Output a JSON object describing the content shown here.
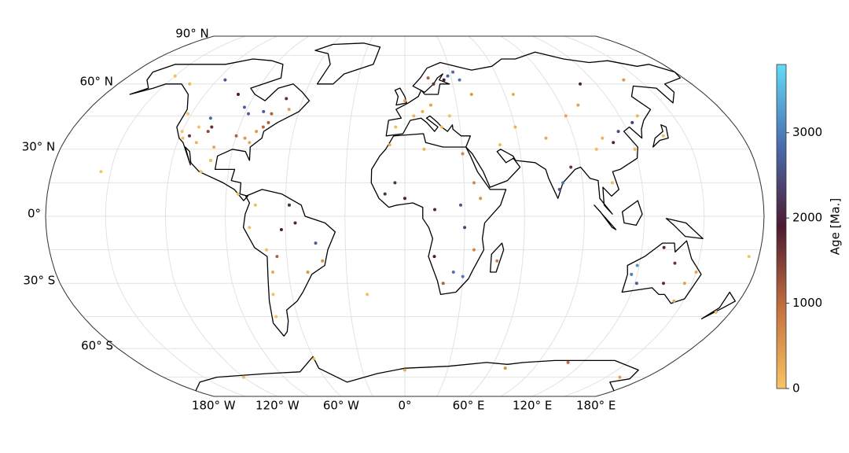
{
  "chart_data": {
    "type": "scatter",
    "colorbar_label": "Age [Ma.]",
    "clim": [
      0,
      3800
    ],
    "cticks": [
      0,
      1000,
      2000,
      3000
    ],
    "colormap": [
      "#f8c462",
      "#c4703e",
      "#4c1a30",
      "#4a6cae",
      "#62dcf8"
    ],
    "yticks": [
      {
        "value": 90,
        "label": "90° N"
      },
      {
        "value": 60,
        "label": "60° N"
      },
      {
        "value": 30,
        "label": "30° N"
      },
      {
        "value": 0,
        "label": "0°"
      },
      {
        "value": -30,
        "label": "30° S"
      },
      {
        "value": -60,
        "label": "60° S"
      }
    ],
    "xticks": [
      {
        "value": -180,
        "label": "180° W"
      },
      {
        "value": -120,
        "label": "120° W"
      },
      {
        "value": -60,
        "label": "60° W"
      },
      {
        "value": 0,
        "label": "0°"
      },
      {
        "value": 60,
        "label": "60° E"
      },
      {
        "value": 120,
        "label": "120° E"
      },
      {
        "value": 180,
        "label": "180° E"
      }
    ],
    "x": [
      -120,
      -118,
      -115,
      -112,
      -110,
      -106,
      -105,
      -108,
      -122,
      -100,
      -104,
      -100,
      -90,
      -85,
      -80,
      -77,
      -75,
      -82,
      -88,
      -80,
      -75,
      -92,
      -100,
      -115,
      -70,
      -66,
      -150,
      -135,
      -84,
      -75,
      -78,
      -70,
      -68,
      -70,
      -72,
      -62,
      -55,
      -45,
      -42,
      -50,
      -58,
      -65,
      -5,
      5,
      10,
      15,
      25,
      0,
      20,
      25,
      28,
      32,
      18,
      15,
      35,
      40,
      -8,
      10,
      30,
      35,
      38,
      30,
      25,
      30,
      20,
      15,
      -10,
      0,
      15,
      35,
      28,
      -5,
      47,
      50,
      60,
      75,
      78,
      80,
      85,
      100,
      105,
      110,
      115,
      120,
      125,
      90,
      100,
      130,
      138,
      110,
      140,
      65,
      105,
      117,
      119,
      121,
      135,
      138,
      146,
      150,
      145,
      131,
      172,
      -60,
      70,
      110,
      160,
      0,
      -120,
      -155,
      -20,
      175
    ],
    "y": [
      38,
      35,
      36,
      40,
      33,
      38,
      40,
      44,
      46,
      31,
      20,
      25,
      36,
      35,
      38,
      40,
      42,
      33,
      46,
      47,
      46,
      49,
      55,
      62,
      53,
      48,
      64,
      60,
      10,
      5,
      -5,
      -15,
      -25,
      -35,
      -45,
      -6,
      -3,
      -12,
      -20,
      -25,
      5,
      -18,
      40,
      45,
      47,
      50,
      45,
      52,
      40,
      62,
      64,
      66,
      60,
      63,
      62,
      55,
      32,
      30,
      28,
      15,
      8,
      -5,
      -25,
      -27,
      -30,
      -18,
      10,
      8,
      3,
      -15,
      5,
      15,
      -20,
      32,
      40,
      35,
      12,
      15,
      22,
      30,
      35,
      33,
      38,
      30,
      42,
      45,
      50,
      45,
      36,
      60,
      62,
      55,
      15,
      -26,
      -22,
      -30,
      -30,
      -21,
      -30,
      -25,
      -38,
      -14,
      -43,
      -65,
      -70,
      -67,
      -75,
      -71,
      -75,
      20,
      -35,
      -18
    ],
    "values": [
      50,
      100,
      1700,
      30,
      200,
      1400,
      1700,
      2800,
      20,
      300,
      40,
      100,
      1100,
      500,
      450,
      1000,
      1100,
      300,
      2700,
      2700,
      1100,
      2700,
      1900,
      2600,
      1700,
      400,
      80,
      150,
      20,
      100,
      30,
      80,
      300,
      60,
      40,
      1900,
      2000,
      2700,
      600,
      500,
      2000,
      1100,
      100,
      200,
      300,
      400,
      50,
      400,
      60,
      1900,
      2700,
      2800,
      1700,
      1100,
      2900,
      500,
      300,
      200,
      700,
      700,
      600,
      2400,
      2900,
      3000,
      1100,
      1900,
      2100,
      2000,
      1800,
      700,
      2600,
      2200,
      800,
      100,
      200,
      300,
      2600,
      2900,
      1600,
      100,
      200,
      1800,
      2500,
      150,
      2300,
      300,
      400,
      200,
      60,
      2000,
      500,
      300,
      150,
      3000,
      3200,
      2700,
      1700,
      1600,
      400,
      300,
      350,
      1800,
      100,
      100,
      600,
      1000,
      400,
      300,
      100,
      5,
      100,
      20
    ]
  }
}
